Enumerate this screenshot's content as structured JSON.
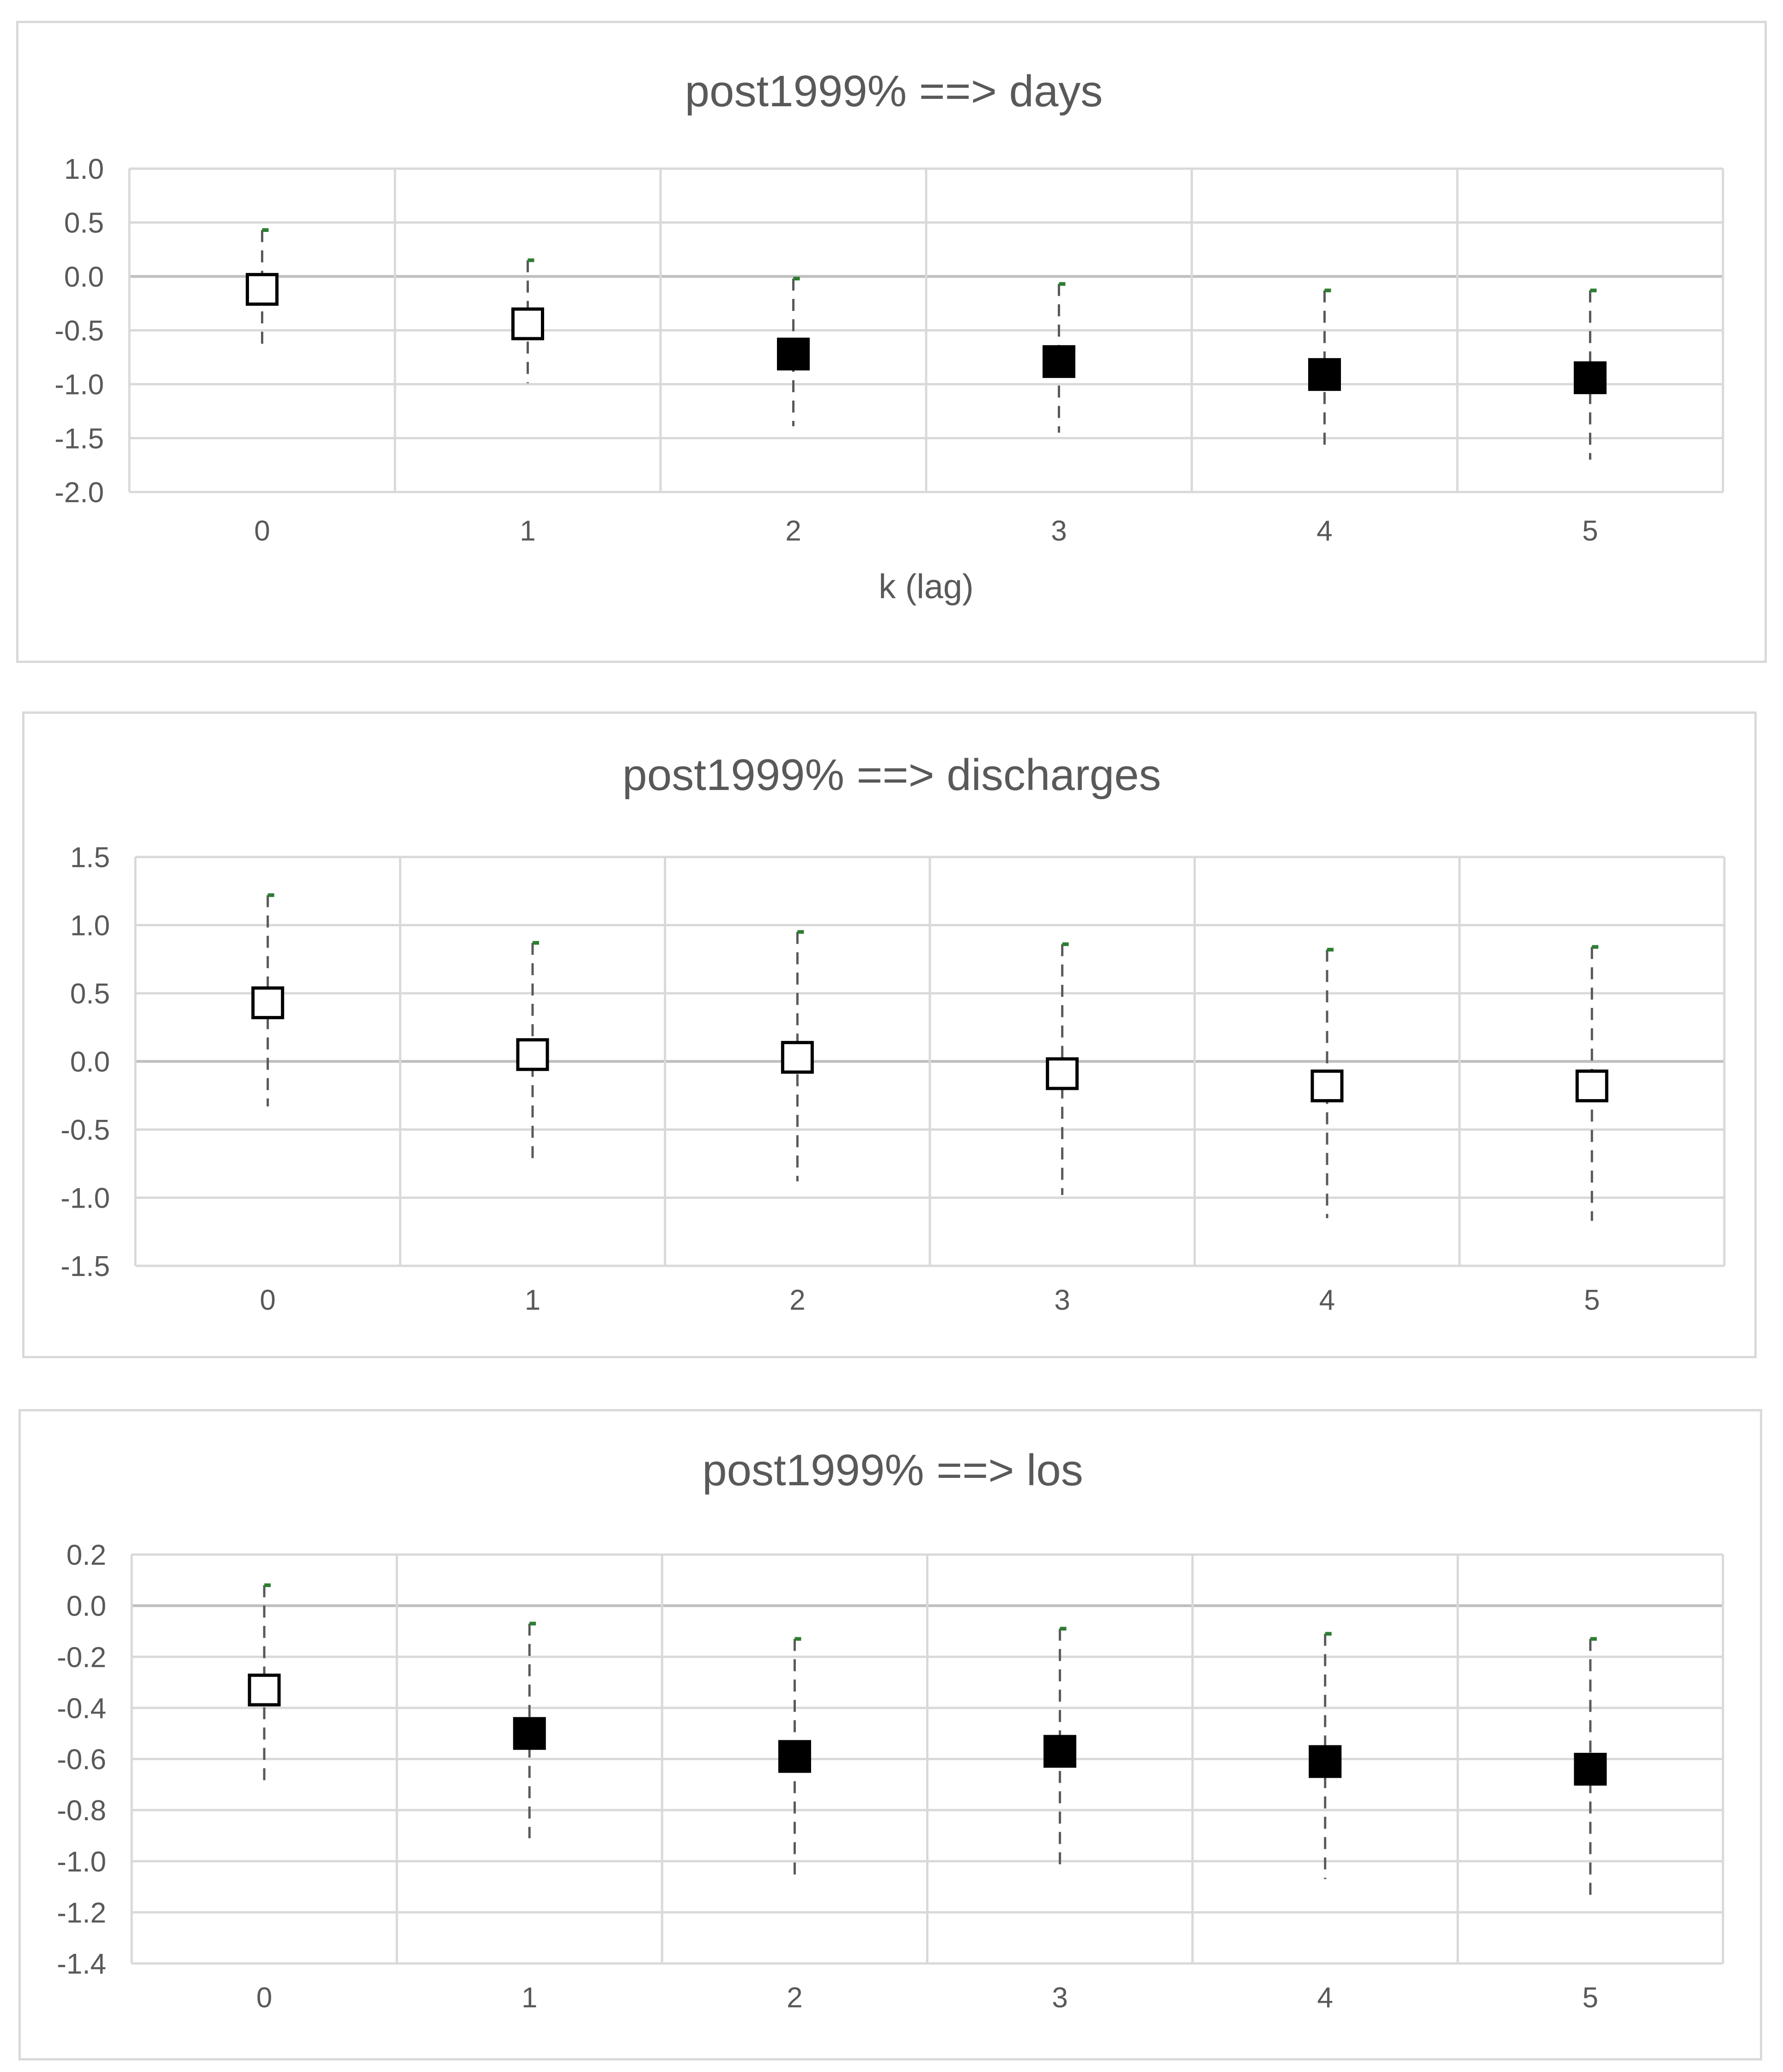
{
  "chart_data": [
    {
      "type": "scatter",
      "title": "post1999% ==> days",
      "xlabel": "k (lag)",
      "ylabel": "",
      "categories": [
        "0",
        "1",
        "2",
        "3",
        "4",
        "5"
      ],
      "ylim": [
        -2.0,
        1.0
      ],
      "y_ticks": [
        "1.0",
        "0.5",
        "0.0",
        "-0.5",
        "-1.0",
        "-1.5",
        "-2.0"
      ],
      "estimates": [
        -0.12,
        -0.44,
        -0.72,
        -0.79,
        -0.91,
        -0.94
      ],
      "ci_upper": [
        0.43,
        0.15,
        -0.02,
        -0.07,
        -0.13,
        -0.13
      ],
      "ci_lower": [
        -0.69,
        -0.99,
        -1.39,
        -1.45,
        -1.63,
        -1.7
      ],
      "filled": [
        false,
        false,
        true,
        true,
        true,
        true
      ],
      "grid": true
    },
    {
      "type": "scatter",
      "title": "post1999% ==> discharges",
      "xlabel": "",
      "ylabel": "",
      "categories": [
        "0",
        "1",
        "2",
        "3",
        "4",
        "5"
      ],
      "ylim": [
        -1.5,
        1.5
      ],
      "y_ticks": [
        "1.5",
        "1.0",
        "0.5",
        "0.0",
        "-0.5",
        "-1.0",
        "-1.5"
      ],
      "estimates": [
        0.43,
        0.05,
        0.03,
        -0.09,
        -0.18,
        -0.18
      ],
      "ci_upper": [
        1.22,
        0.87,
        0.95,
        0.86,
        0.82,
        0.84
      ],
      "ci_lower": [
        -0.33,
        -0.77,
        -0.88,
        -0.98,
        -1.15,
        -1.17
      ],
      "filled": [
        false,
        false,
        false,
        false,
        false,
        false
      ],
      "grid": true
    },
    {
      "type": "scatter",
      "title": "post1999% ==> los",
      "xlabel": "",
      "ylabel": "",
      "categories": [
        "0",
        "1",
        "2",
        "3",
        "4",
        "5"
      ],
      "ylim": [
        -1.4,
        0.2
      ],
      "y_ticks": [
        "0.2",
        "0.0",
        "-0.2",
        "-0.4",
        "-0.6",
        "-0.8",
        "-1.0",
        "-1.2",
        "-1.4"
      ],
      "estimates": [
        -0.33,
        -0.5,
        -0.59,
        -0.57,
        -0.61,
        -0.64
      ],
      "ci_upper": [
        0.08,
        -0.07,
        -0.13,
        -0.09,
        -0.11,
        -0.13
      ],
      "ci_lower": [
        -0.69,
        -0.91,
        -1.06,
        -1.04,
        -1.07,
        -1.16
      ],
      "filled": [
        false,
        true,
        true,
        true,
        true,
        true
      ],
      "grid": true
    }
  ]
}
